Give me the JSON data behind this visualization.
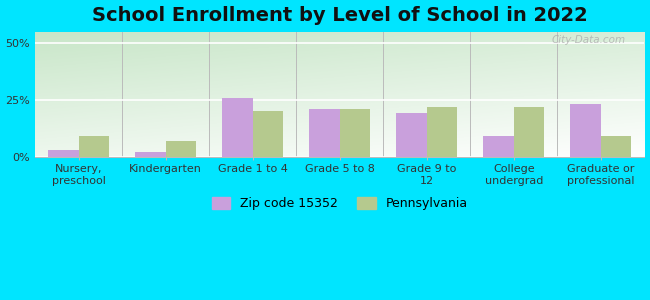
{
  "title": "School Enrollment by Level of School in 2022",
  "categories": [
    "Nursery,\npreschool",
    "Kindergarten",
    "Grade 1 to 4",
    "Grade 5 to 8",
    "Grade 9 to\n12",
    "College\nundergrad",
    "Graduate or\nprofessional"
  ],
  "zip_values": [
    3.0,
    2.0,
    26.0,
    21.0,
    19.0,
    9.0,
    23.0
  ],
  "pa_values": [
    9.0,
    7.0,
    20.0,
    21.0,
    22.0,
    22.0,
    9.0
  ],
  "zip_color": "#c9a0dc",
  "pa_color": "#b5c98e",
  "zip_label": "Zip code 15352",
  "pa_label": "Pennsylvania",
  "background_outer": "#00e5ff",
  "ylim": [
    0,
    55
  ],
  "yticks": [
    0,
    25,
    50
  ],
  "ytick_labels": [
    "0%",
    "25%",
    "50%"
  ],
  "watermark": "City-Data.com",
  "bar_width": 0.35,
  "title_fontsize": 14,
  "tick_fontsize": 8,
  "legend_fontsize": 9
}
